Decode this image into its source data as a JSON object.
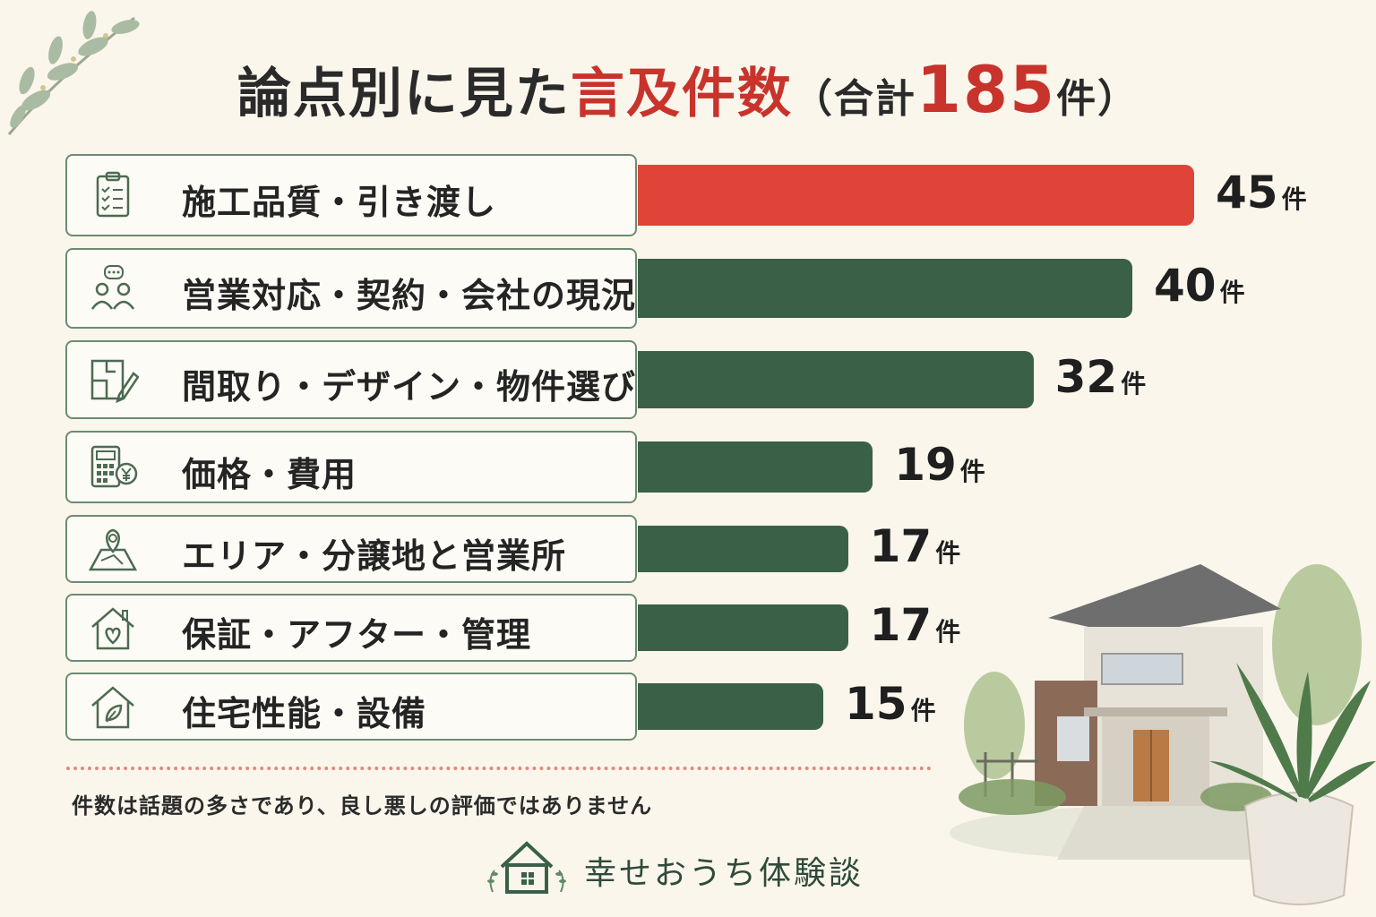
{
  "title": {
    "main": "論点別に見た",
    "accent": "言及件数",
    "paren_open": "（合計",
    "total": "185",
    "unit_close": "件）"
  },
  "colors": {
    "highlight_bar": "#e04438",
    "bar": "#3a6048",
    "title_accent": "#c8332b",
    "border": "#6c8c70"
  },
  "chart_data": {
    "type": "bar",
    "orientation": "horizontal",
    "categories": [
      "施工品質・引き渡し",
      "営業対応・契約・会社の現況",
      "間取り・デザイン・物件選び",
      "価格・費用",
      "エリア・分譲地と営業所",
      "保証・アフター・管理",
      "住宅性能・設備"
    ],
    "values": [
      45,
      40,
      32,
      19,
      17,
      17,
      15
    ],
    "value_unit": "件",
    "icons": [
      "clipboard-checklist-icon",
      "people-speech-icon",
      "floorplan-pencil-icon",
      "calculator-yen-icon",
      "map-pin-icon",
      "house-heart-icon",
      "house-leaf-icon"
    ],
    "highlight_index": 0,
    "total": 185
  },
  "note": "件数は話題の多さであり、良し悪しの評価ではありません",
  "brand": {
    "name": "幸せおうち体験談",
    "icon": "house-logo-icon"
  }
}
